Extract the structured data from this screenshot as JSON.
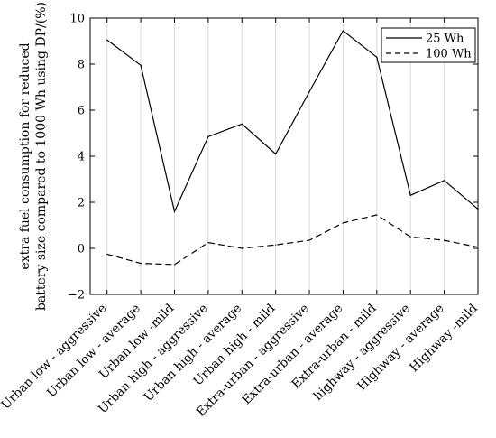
{
  "chart_data": {
    "type": "line",
    "categories": [
      "Urban low - aggressive",
      "Urban low - average",
      "Urban low -mild",
      "Urban high - aggressive",
      "Urban high - average",
      "Urban high - mild",
      "Extra-urban - aggressive",
      "Extra-urban - average",
      "Extra-urban - mild",
      "highway - aggressive",
      "Highway - average",
      "Highway -mild"
    ],
    "series": [
      {
        "name": "25 Wh",
        "style": "solid",
        "values": [
          9.05,
          7.95,
          1.6,
          4.85,
          5.4,
          4.1,
          6.8,
          9.45,
          8.3,
          2.3,
          2.95,
          1.7
        ]
      },
      {
        "name": "100 Wh",
        "style": "dashed",
        "values": [
          -0.25,
          -0.65,
          -0.7,
          0.25,
          0.0,
          0.15,
          0.35,
          1.1,
          1.45,
          0.5,
          0.35,
          0.05
        ]
      }
    ],
    "ylabel_lines": [
      "extra fuel consumption for reduced",
      "battery size compared to 1000 Wh using DP/(%)"
    ],
    "ylim": [
      -2,
      10
    ],
    "yticks": [
      -2,
      0,
      2,
      4,
      6,
      8,
      10
    ],
    "grid": "vertical",
    "legend_position": "top-right"
  }
}
